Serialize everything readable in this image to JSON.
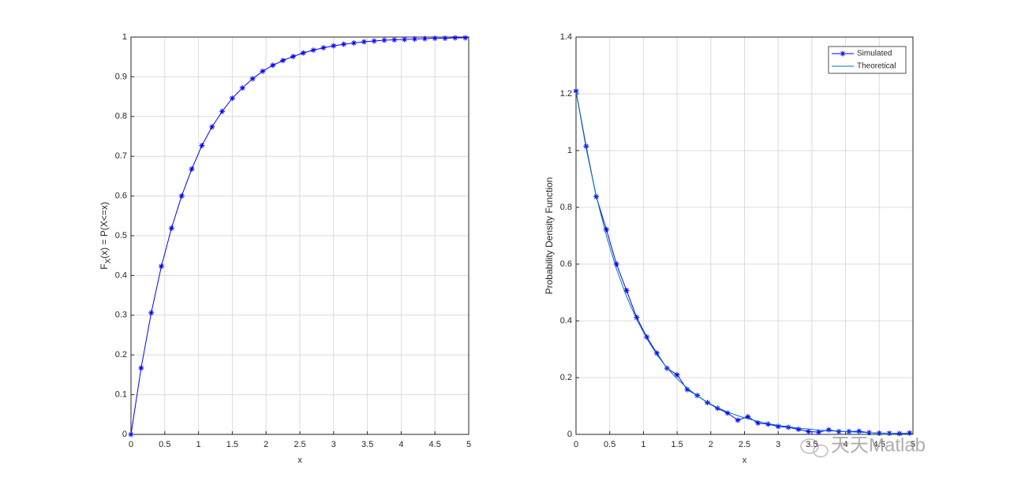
{
  "chart_data": [
    {
      "type": "line",
      "xlabel": "x",
      "ylabel": [
        "F",
        "X",
        "(x) = P(X<=x)"
      ],
      "x": [
        0,
        0.15,
        0.3,
        0.45,
        0.6,
        0.75,
        0.9,
        1.05,
        1.2,
        1.35,
        1.5,
        1.65,
        1.8,
        1.95,
        2.1,
        2.25,
        2.4,
        2.55,
        2.7,
        2.85,
        3.0,
        3.15,
        3.3,
        3.45,
        3.6,
        3.75,
        3.9,
        4.05,
        4.2,
        4.35,
        4.5,
        4.65,
        4.8,
        4.95
      ],
      "values": [
        0,
        0.167,
        0.306,
        0.423,
        0.519,
        0.6,
        0.668,
        0.727,
        0.774,
        0.813,
        0.846,
        0.872,
        0.895,
        0.914,
        0.929,
        0.941,
        0.951,
        0.96,
        0.967,
        0.973,
        0.978,
        0.982,
        0.985,
        0.988,
        0.99,
        0.992,
        0.993,
        0.994,
        0.995,
        0.996,
        0.997,
        0.997,
        0.998,
        0.998
      ],
      "color": "#0000ff",
      "marker": "*",
      "xlim": [
        0,
        5
      ],
      "xticks": [
        0,
        0.5,
        1,
        1.5,
        2,
        2.5,
        3,
        3.5,
        4,
        4.5,
        5
      ],
      "ylim": [
        0,
        1
      ],
      "yticks": [
        0,
        0.1,
        0.2,
        0.3,
        0.4,
        0.5,
        0.6,
        0.7,
        0.8,
        0.9,
        1
      ],
      "grid": true
    },
    {
      "type": "line",
      "xlabel": "x",
      "ylabel": [
        "Probability Density Function"
      ],
      "x": [
        0,
        0.15,
        0.3,
        0.45,
        0.6,
        0.75,
        0.9,
        1.05,
        1.2,
        1.35,
        1.5,
        1.65,
        1.8,
        1.95,
        2.1,
        2.25,
        2.4,
        2.55,
        2.7,
        2.85,
        3.0,
        3.15,
        3.3,
        3.45,
        3.6,
        3.75,
        3.9,
        4.05,
        4.2,
        4.35,
        4.5,
        4.65,
        4.8,
        4.95
      ],
      "series": [
        {
          "name": "Simulated",
          "color": "#0000ff",
          "marker": "*",
          "values": [
            1.21,
            1.015,
            0.838,
            0.722,
            0.6,
            0.507,
            0.412,
            0.343,
            0.286,
            0.233,
            0.21,
            0.158,
            0.137,
            0.112,
            0.092,
            0.075,
            0.05,
            0.062,
            0.04,
            0.036,
            0.028,
            0.025,
            0.018,
            0.01,
            0.008,
            0.016,
            0.01,
            0.01,
            0.011,
            0.006,
            0.004,
            0.004,
            0.003,
            0.005
          ]
        },
        {
          "name": "Theoretical",
          "color": "#0072bd",
          "values": [
            1.21,
            1.008,
            0.84,
            0.7,
            0.583,
            0.486,
            0.405,
            0.338,
            0.281,
            0.234,
            0.196,
            0.163,
            0.136,
            0.113,
            0.094,
            0.079,
            0.066,
            0.055,
            0.046,
            0.038,
            0.032,
            0.027,
            0.022,
            0.019,
            0.015,
            0.013,
            0.011,
            0.009,
            0.008,
            0.006,
            0.005,
            0.004,
            0.004,
            0.003
          ]
        }
      ],
      "xlim": [
        0,
        5
      ],
      "xticks": [
        0,
        0.5,
        1,
        1.5,
        2,
        2.5,
        3,
        3.5,
        4,
        4.5,
        5
      ],
      "ylim": [
        0,
        1.4
      ],
      "yticks": [
        0,
        0.2,
        0.4,
        0.6,
        0.8,
        1,
        1.2,
        1.4
      ],
      "grid": true,
      "legend": "northeast"
    }
  ],
  "watermark": "天天Matlab"
}
